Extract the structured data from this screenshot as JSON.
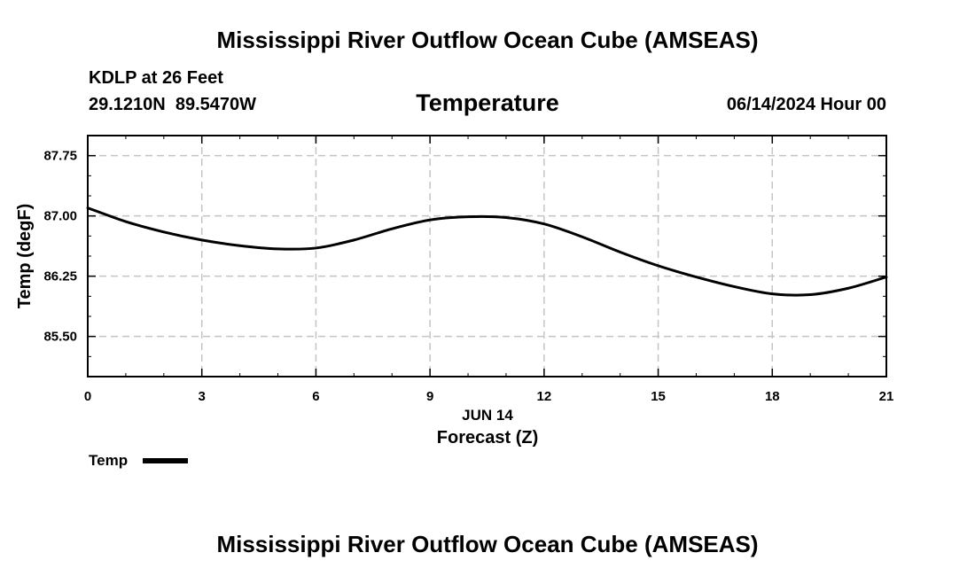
{
  "header": {
    "title": "Mississippi River Outflow Ocean Cube (AMSEAS)",
    "station": "KDLP at 26 Feet",
    "coords": "29.1210N  89.5470W",
    "variable": "Temperature",
    "datetime": "06/14/2024 Hour 00"
  },
  "footer": {
    "title": "Mississippi River Outflow Ocean Cube (AMSEAS)"
  },
  "chart_data": {
    "type": "line",
    "title": "Temperature",
    "xlabel": "Forecast (Z)",
    "xsublabel": "JUN 14",
    "ylabel": "Temp (degF)",
    "xlim": [
      0,
      21
    ],
    "ylim": [
      85.0,
      88.0
    ],
    "xticks": [
      0,
      3,
      6,
      9,
      12,
      15,
      18,
      21
    ],
    "xtick_labels": [
      "0",
      "3",
      "6",
      "9",
      "12",
      "15",
      "18",
      "21"
    ],
    "yticks": [
      85.5,
      86.25,
      87.0,
      87.75
    ],
    "ytick_labels": [
      "85.50",
      "86.25",
      "87.00",
      "87.75"
    ],
    "grid": true,
    "legend": {
      "position": "bottom-left",
      "entries": [
        "Temp"
      ]
    },
    "series": [
      {
        "name": "Temp",
        "color": "#000000",
        "x": [
          0,
          1,
          2,
          3,
          4,
          5,
          6,
          7,
          8,
          9,
          10,
          11,
          12,
          13,
          14,
          15,
          16,
          17,
          18,
          19,
          20,
          21
        ],
        "values": [
          87.1,
          86.93,
          86.8,
          86.7,
          86.63,
          86.59,
          86.6,
          86.7,
          86.84,
          86.95,
          86.99,
          86.98,
          86.9,
          86.74,
          86.55,
          86.38,
          86.24,
          86.12,
          86.03,
          86.02,
          86.1,
          86.24
        ]
      }
    ]
  }
}
